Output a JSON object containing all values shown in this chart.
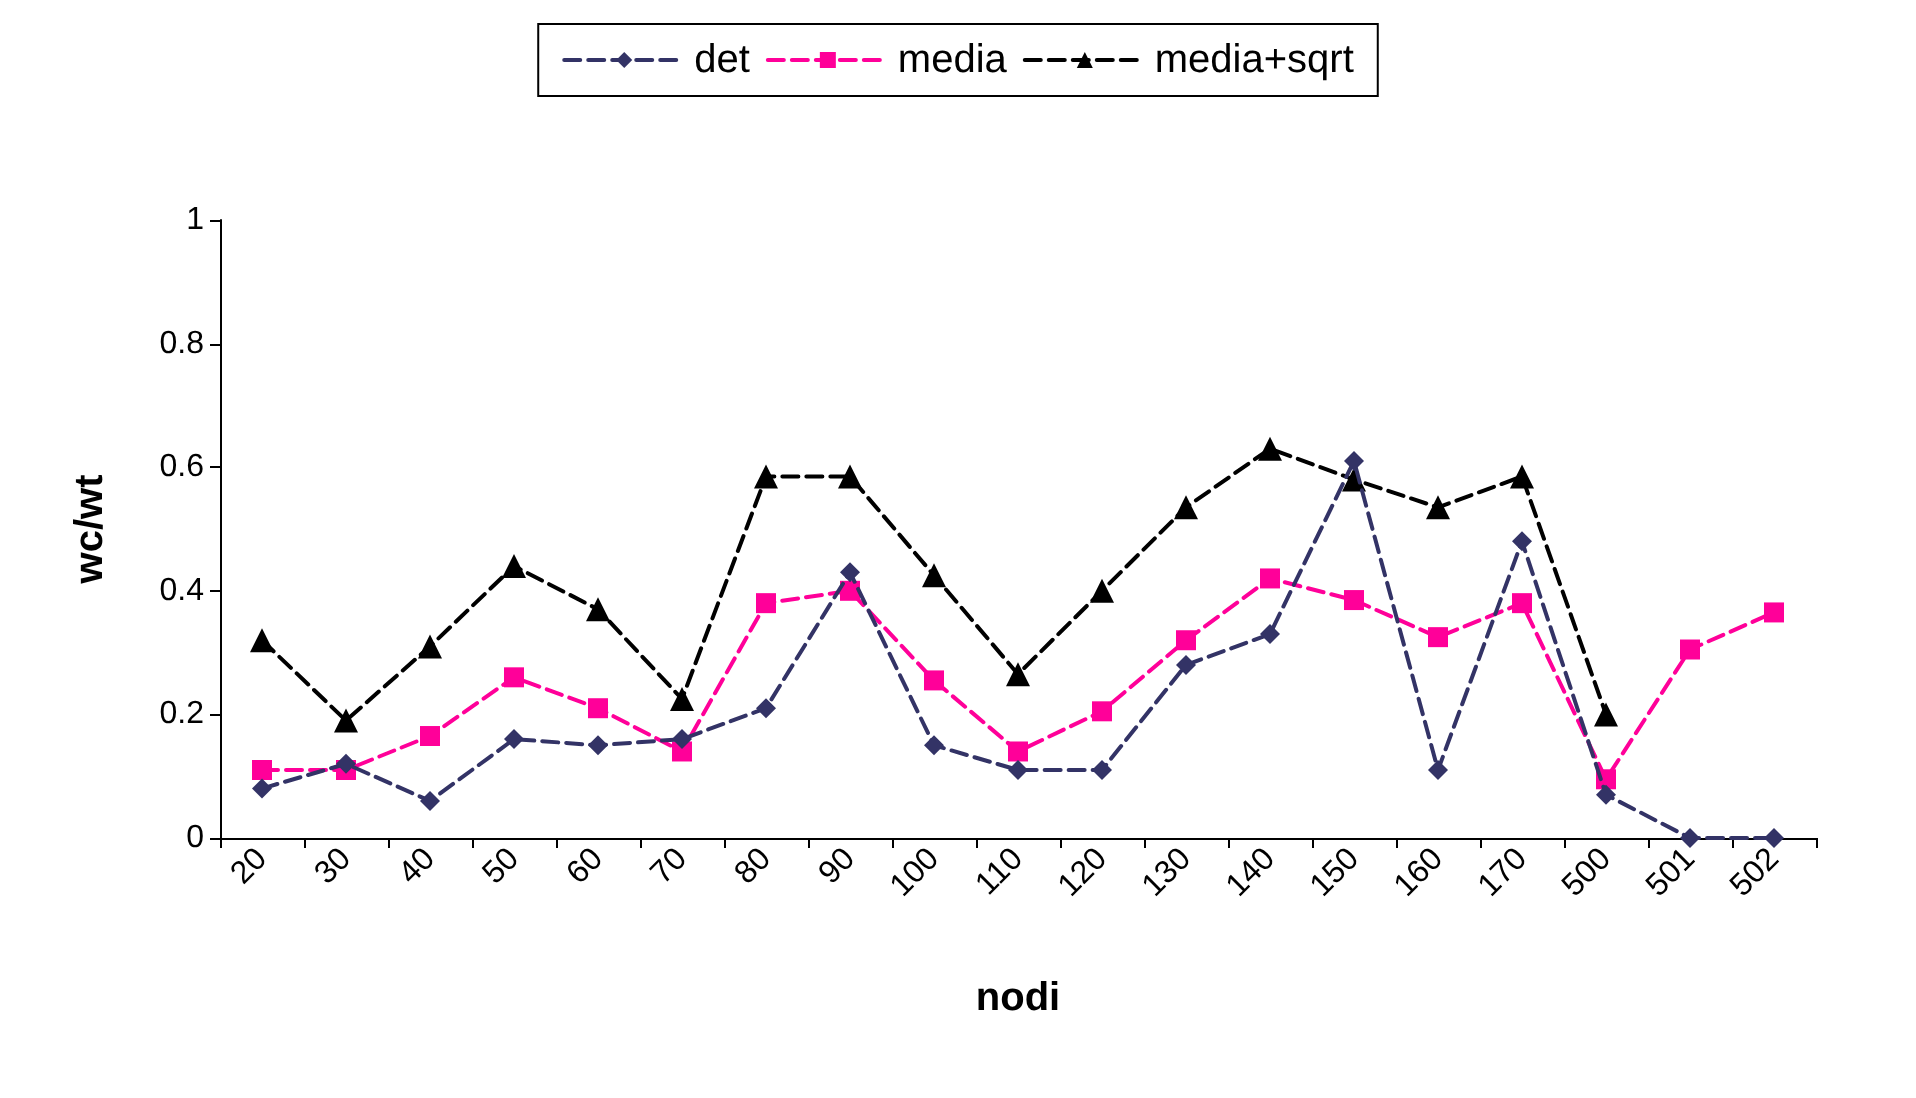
{
  "chart_data": {
    "type": "line",
    "xlabel": "nodi",
    "ylabel": "wc/wt",
    "categories": [
      "20",
      "30",
      "40",
      "50",
      "60",
      "70",
      "80",
      "90",
      "100",
      "110",
      "120",
      "130",
      "140",
      "150",
      "160",
      "170",
      "500",
      "501",
      "502"
    ],
    "series": [
      {
        "name": "det",
        "color": "#333366",
        "marker": "diamond",
        "values": [
          0.08,
          0.12,
          0.06,
          0.16,
          0.15,
          0.16,
          0.21,
          0.43,
          0.15,
          0.11,
          0.11,
          0.28,
          0.33,
          0.61,
          0.11,
          0.48,
          0.07,
          0.0,
          0.0
        ]
      },
      {
        "name": "media",
        "color": "#ff0099",
        "marker": "square",
        "values": [
          0.11,
          0.11,
          0.165,
          0.26,
          0.21,
          0.14,
          0.38,
          0.4,
          0.255,
          0.14,
          0.205,
          0.32,
          0.42,
          0.385,
          0.325,
          0.38,
          0.095,
          0.305,
          0.365
        ]
      },
      {
        "name": "media+sqrt",
        "color": "#000000",
        "marker": "triangle",
        "values": [
          0.32,
          0.19,
          0.31,
          0.44,
          0.37,
          0.225,
          0.585,
          0.585,
          0.425,
          0.265,
          0.4,
          0.535,
          0.63,
          0.58,
          0.535,
          0.585,
          0.2,
          null,
          null
        ]
      }
    ],
    "ylim": [
      0,
      1
    ],
    "yticks": [
      0,
      0.2,
      0.4,
      0.6,
      0.8,
      1
    ],
    "grid": false,
    "legend": "top",
    "line_style": "dashed"
  }
}
